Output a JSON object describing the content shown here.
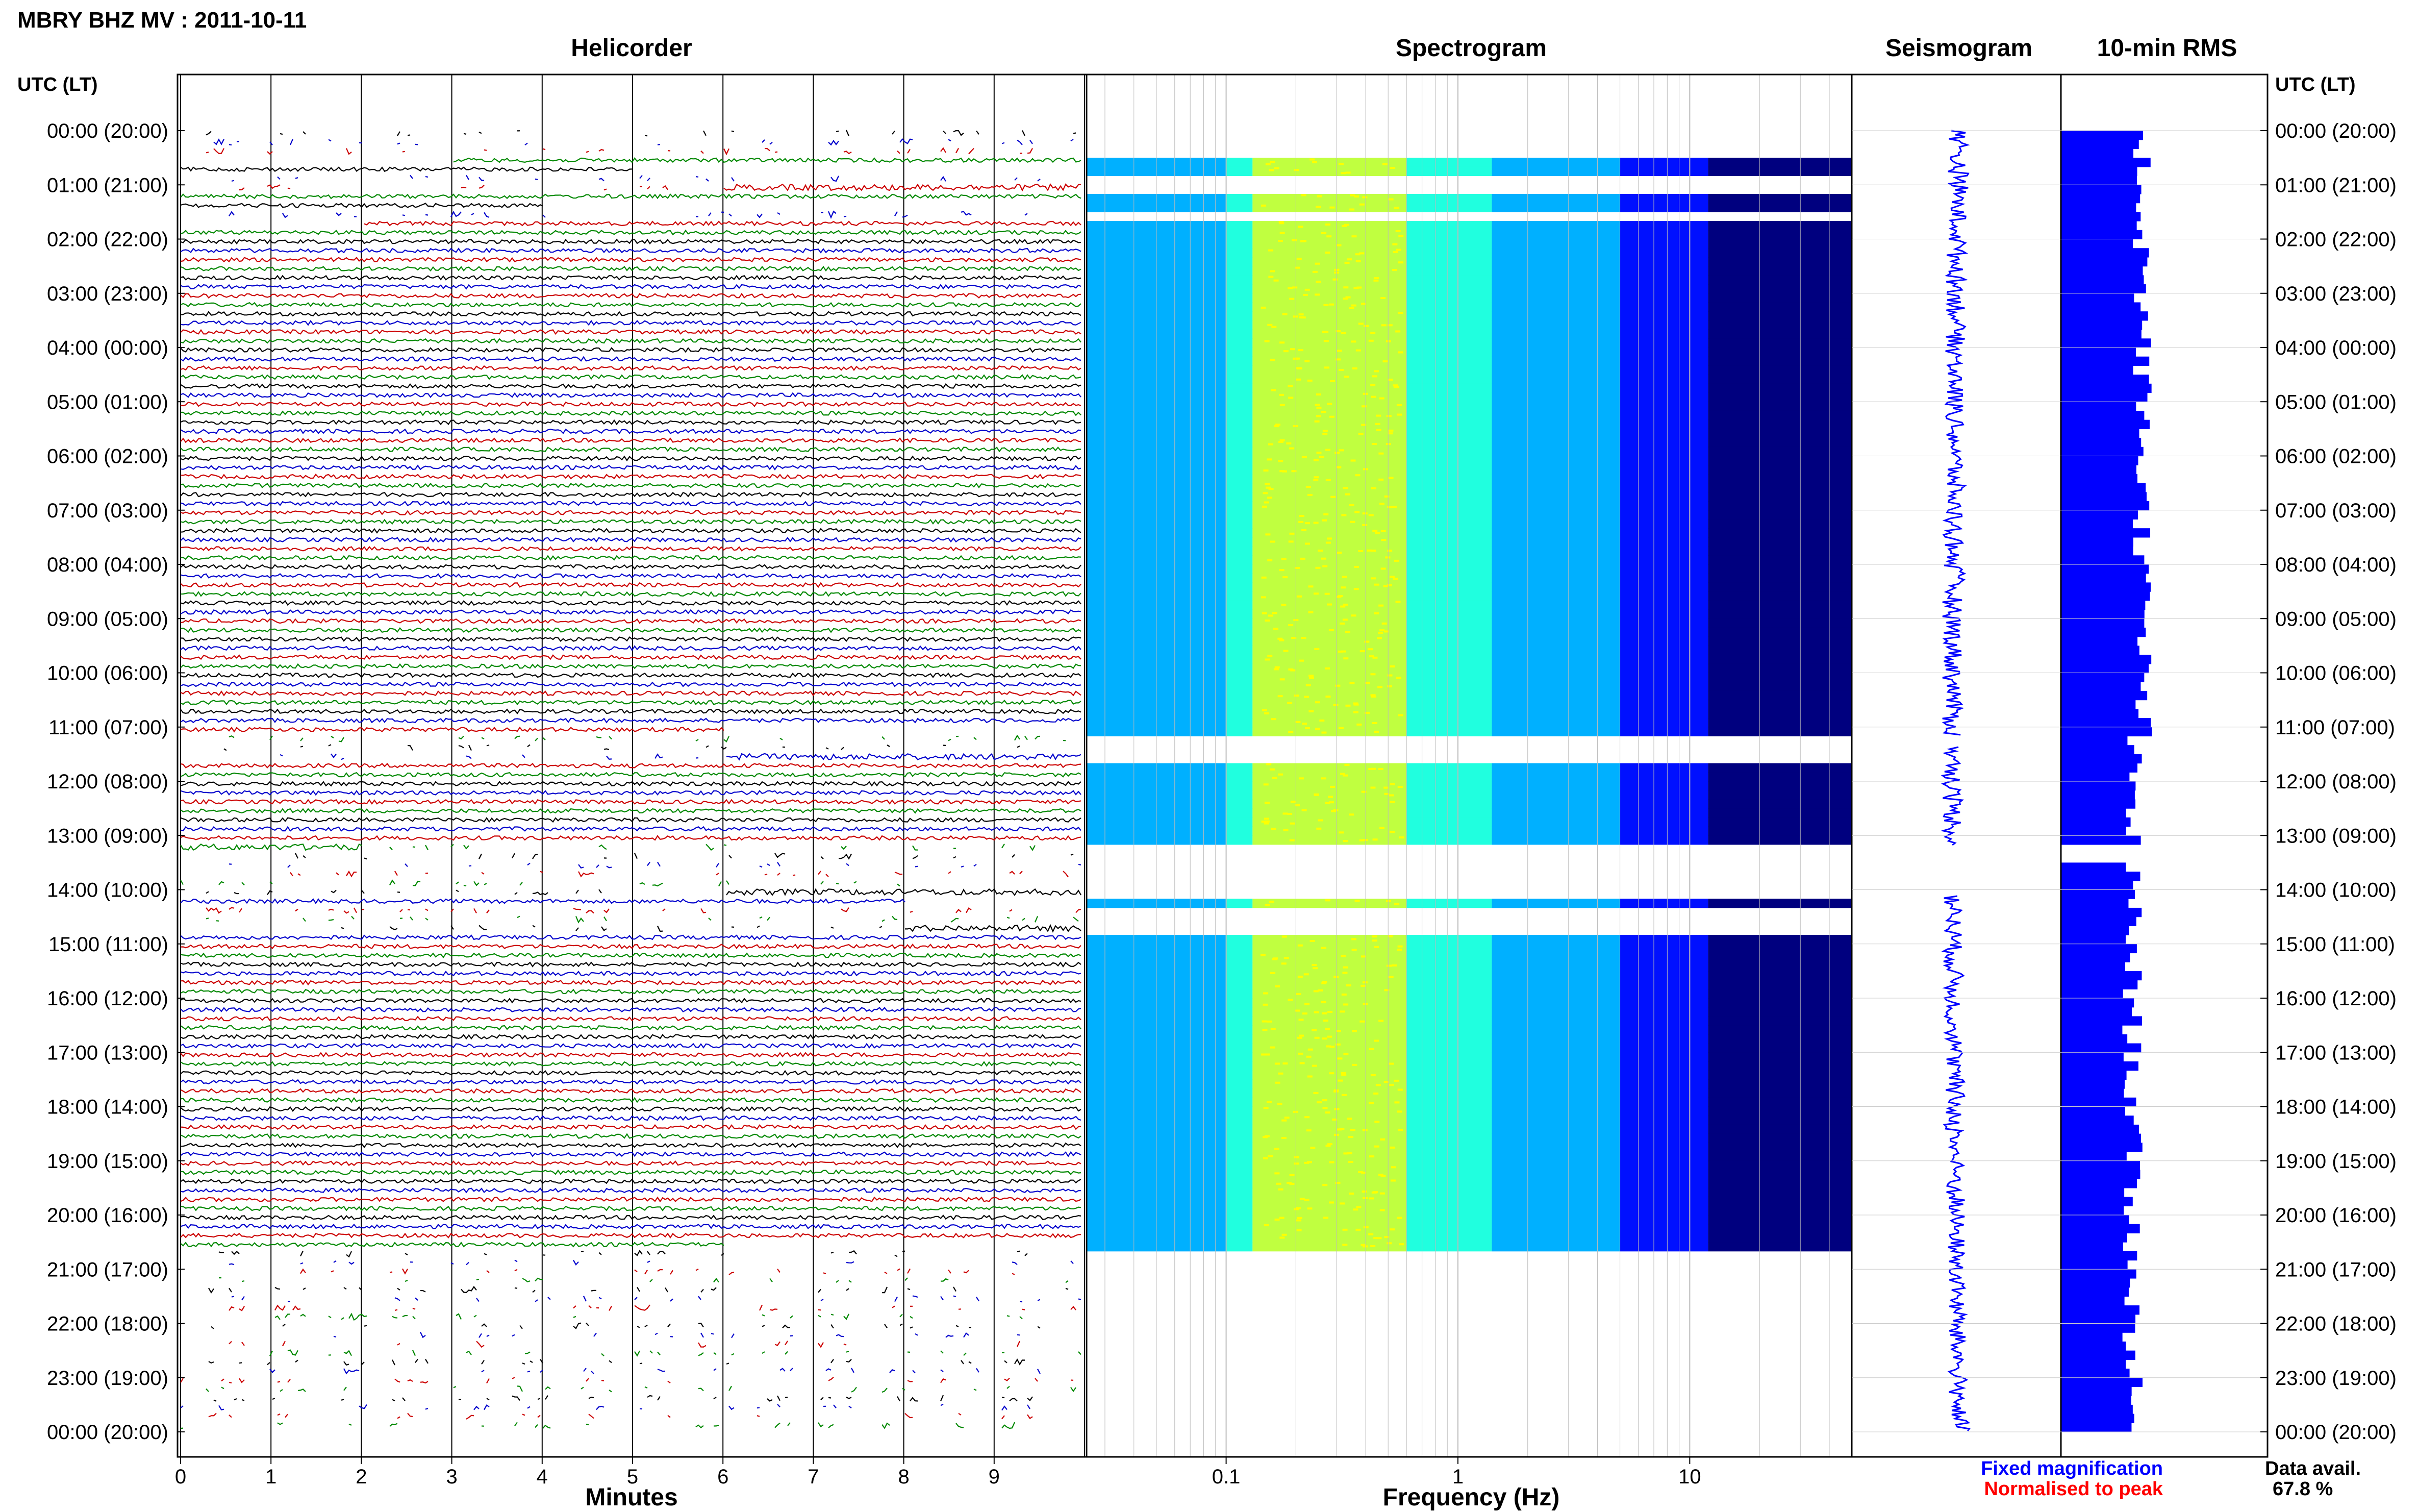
{
  "page_title": "MBRY BHZ MV : 2011-10-11",
  "panels": {
    "helicorder": "Helicorder",
    "spectrogram": "Spectrogram",
    "seismogram": "Seismogram",
    "rms": "10-min RMS"
  },
  "time_axis_label": "UTC (LT)",
  "time_labels": [
    "00:00 (20:00)",
    "01:00 (21:00)",
    "02:00 (22:00)",
    "03:00 (23:00)",
    "04:00 (00:00)",
    "05:00 (01:00)",
    "06:00 (02:00)",
    "07:00 (03:00)",
    "08:00 (04:00)",
    "09:00 (05:00)",
    "10:00 (06:00)",
    "11:00 (07:00)",
    "12:00 (08:00)",
    "13:00 (09:00)",
    "14:00 (10:00)",
    "15:00 (11:00)",
    "16:00 (12:00)",
    "17:00 (13:00)",
    "18:00 (14:00)",
    "19:00 (15:00)",
    "20:00 (16:00)",
    "21:00 (17:00)",
    "22:00 (18:00)",
    "23:00 (19:00)",
    "00:00 (20:00)"
  ],
  "helicorder_axis": {
    "label": "Minutes",
    "ticks": [
      "0",
      "1",
      "2",
      "3",
      "4",
      "5",
      "6",
      "7",
      "8",
      "9"
    ]
  },
  "spectrogram_axis": {
    "label": "Frequency (Hz)",
    "ticks": [
      "0.1",
      "1",
      "10"
    ],
    "range": [
      0.025,
      50
    ],
    "scale": "log"
  },
  "legend": {
    "fixed": "Fixed magnification",
    "normalised": "Normalised to peak",
    "fixed_color": "#0000ff",
    "normalised_color": "#ff0000"
  },
  "availability": {
    "label": "Data avail.",
    "value": "67.8 %"
  },
  "colors": {
    "trace_cycle": [
      "#000000",
      "#0000cc",
      "#cc0000",
      "#008800"
    ],
    "rms_bar": "#0000ff",
    "spectrogram_cmap": [
      "#00007f",
      "#0010ff",
      "#00b0ff",
      "#20ffdf",
      "#c0ff40",
      "#ffff00"
    ]
  },
  "chart_data": {
    "type": "heatmap",
    "title": "MBRY BHZ MV : 2011-10-11",
    "hours_utc": 24,
    "gaps_utc_hours": [
      [
        0.0,
        0.55
      ],
      [
        0.75,
        1.1
      ],
      [
        1.4,
        1.7
      ],
      [
        11.1,
        11.6
      ],
      [
        13.2,
        14.1
      ],
      [
        14.3,
        14.8
      ],
      [
        20.6,
        24.0
      ]
    ],
    "rms_10min_gap_utc_hours": [
      [
        13.2,
        13.5
      ]
    ],
    "data_availability_percent": 67.8
  }
}
